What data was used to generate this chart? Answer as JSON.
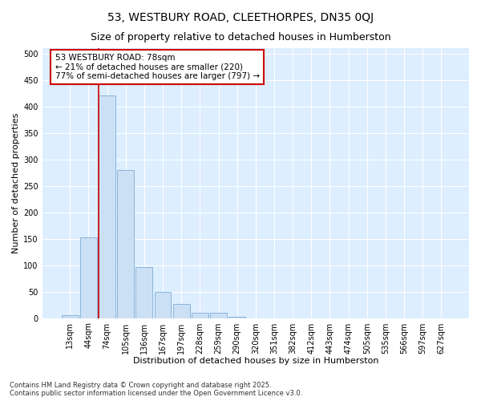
{
  "title": "53, WESTBURY ROAD, CLEETHORPES, DN35 0QJ",
  "subtitle": "Size of property relative to detached houses in Humberston",
  "xlabel": "Distribution of detached houses by size in Humberston",
  "ylabel": "Number of detached properties",
  "categories": [
    "13sqm",
    "44sqm",
    "74sqm",
    "105sqm",
    "136sqm",
    "167sqm",
    "197sqm",
    "228sqm",
    "259sqm",
    "290sqm",
    "320sqm",
    "351sqm",
    "382sqm",
    "412sqm",
    "443sqm",
    "474sqm",
    "505sqm",
    "535sqm",
    "566sqm",
    "597sqm",
    "627sqm"
  ],
  "values": [
    5,
    152,
    420,
    280,
    96,
    50,
    27,
    10,
    10,
    3,
    0,
    0,
    0,
    0,
    0,
    0,
    0,
    0,
    0,
    0,
    0
  ],
  "bar_color": "#cce0f5",
  "bar_edge_color": "#8ab4d8",
  "property_line_color": "#cc0000",
  "property_line_x": 2.0,
  "annotation_text": "53 WESTBURY ROAD: 78sqm\n← 21% of detached houses are smaller (220)\n77% of semi-detached houses are larger (797) →",
  "annotation_box_edgecolor": "#cc0000",
  "annotation_fontsize": 7.5,
  "plot_bg_color": "#ddeeff",
  "fig_bg_color": "#ffffff",
  "grid_color": "#ffffff",
  "ylim": [
    0,
    510
  ],
  "yticks": [
    0,
    50,
    100,
    150,
    200,
    250,
    300,
    350,
    400,
    450,
    500
  ],
  "footnote": "Contains HM Land Registry data © Crown copyright and database right 2025.\nContains public sector information licensed under the Open Government Licence v3.0.",
  "title_fontsize": 10,
  "subtitle_fontsize": 9,
  "xlabel_fontsize": 8,
  "ylabel_fontsize": 8,
  "tick_fontsize": 7
}
